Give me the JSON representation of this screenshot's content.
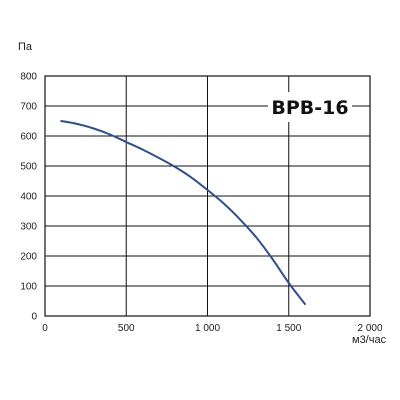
{
  "chart_data": {
    "type": "line",
    "title": "ВРВ-16",
    "ylabel": "Па",
    "xlabel": "м3/час",
    "xlim": [
      0,
      2000
    ],
    "ylim": [
      0,
      800
    ],
    "x_ticks": [
      0,
      500,
      1000,
      1500,
      2000
    ],
    "x_tick_labels": [
      "0",
      "500",
      "1 000",
      "1 500",
      "2 000"
    ],
    "y_ticks": [
      0,
      100,
      200,
      300,
      400,
      500,
      600,
      700,
      800
    ],
    "y_tick_labels": [
      "0",
      "100",
      "200",
      "300",
      "400",
      "500",
      "600",
      "700",
      "800"
    ],
    "grid": true,
    "series": [
      {
        "color": "#2f4f8f",
        "points": [
          [
            100,
            650
          ],
          [
            200,
            640
          ],
          [
            300,
            625
          ],
          [
            400,
            605
          ],
          [
            500,
            580
          ],
          [
            600,
            555
          ],
          [
            700,
            527
          ],
          [
            800,
            497
          ],
          [
            900,
            462
          ],
          [
            1000,
            420
          ],
          [
            1100,
            375
          ],
          [
            1200,
            322
          ],
          [
            1300,
            262
          ],
          [
            1400,
            190
          ],
          [
            1500,
            110
          ],
          [
            1600,
            40
          ]
        ]
      }
    ]
  }
}
